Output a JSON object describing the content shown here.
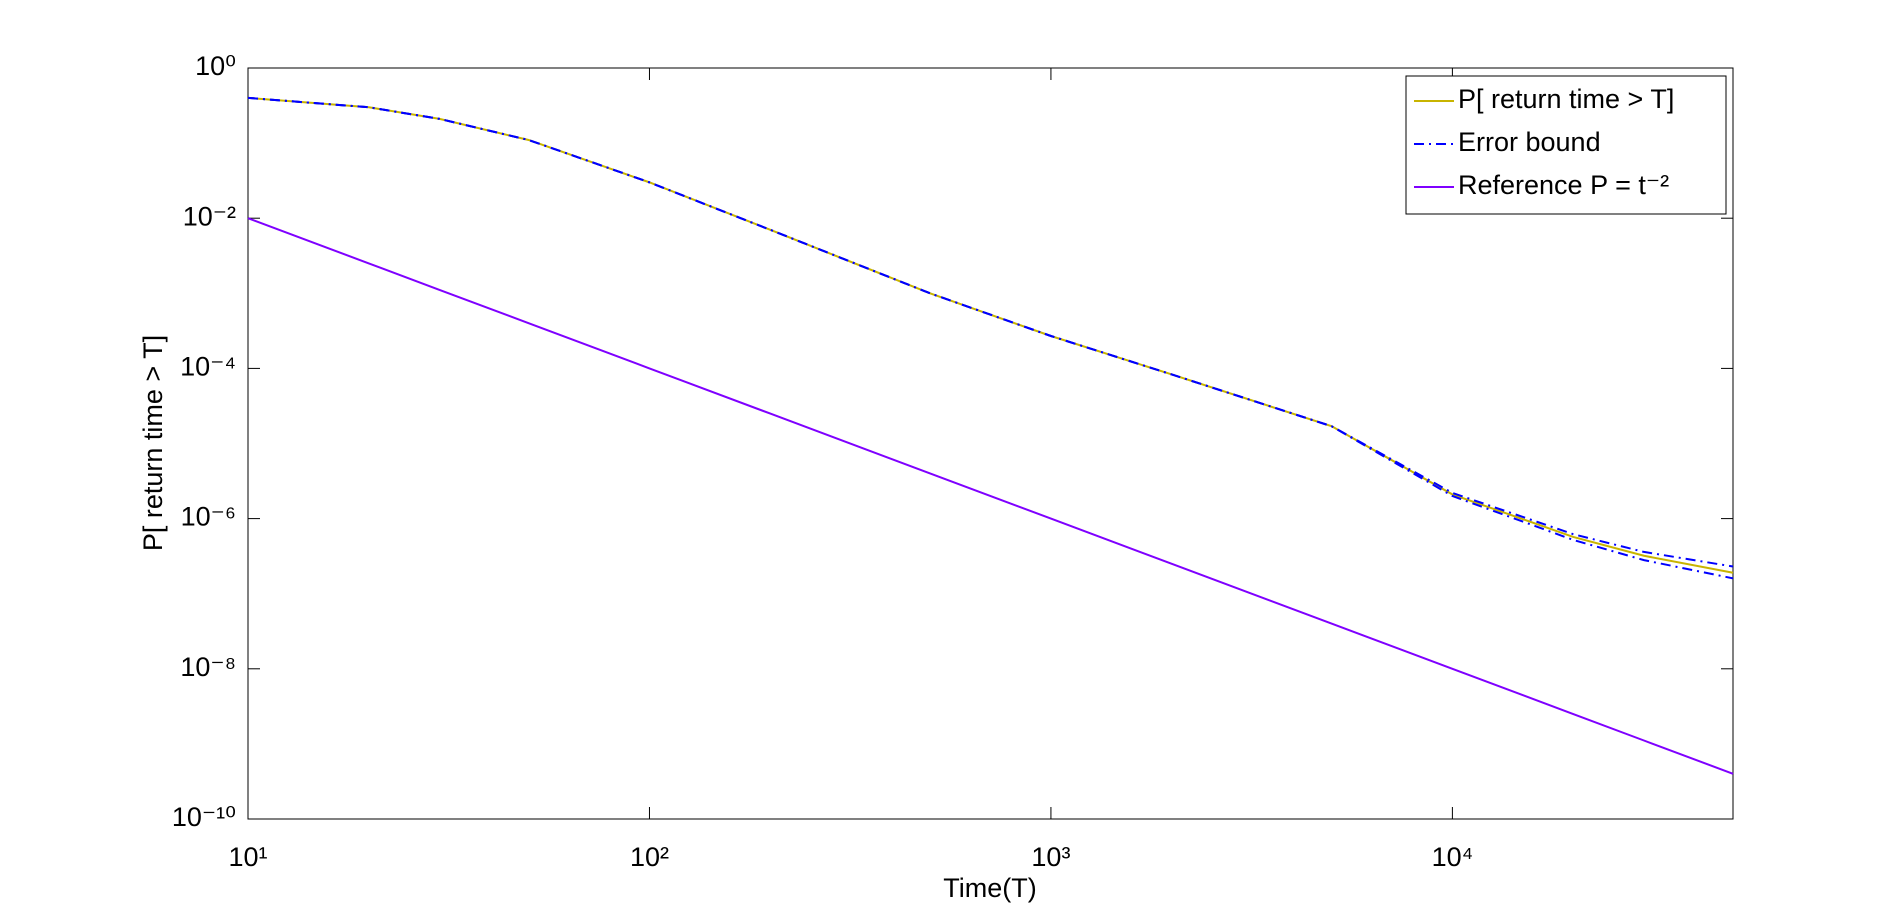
{
  "chart_data": {
    "type": "line",
    "x_label": "Time(T)",
    "y_label": "P[ return time > T]",
    "log_x": true,
    "log_y": true,
    "grid": false,
    "legend": "upper right",
    "x": [
      10,
      20,
      30,
      50,
      100,
      200,
      500,
      1000,
      2000,
      5000,
      10000,
      20000,
      30000,
      50000
    ],
    "series": [
      {
        "name": "P[ return time > T]",
        "color": "#c8b400",
        "style": "solid",
        "values": [
          0.4,
          0.3,
          0.21,
          0.11,
          0.03,
          0.007,
          0.001,
          0.00027,
          8.3e-05,
          1.7e-05,
          2.1e-06,
          5.7e-07,
          3.2e-07,
          1.9e-07
        ]
      },
      {
        "name": "Error bound",
        "color": "#0000ff",
        "style": "dashdot",
        "values": [
          0.4,
          0.3,
          0.21,
          0.11,
          0.03,
          0.007,
          0.001,
          0.00027,
          8.3e-05,
          1.7e-05,
          2.2e-06,
          6.2e-07,
          3.6e-07,
          2.3e-07
        ],
        "lower": [
          0.4,
          0.3,
          0.21,
          0.11,
          0.03,
          0.007,
          0.001,
          0.00027,
          8.3e-05,
          1.7e-05,
          2e-06,
          5.2e-07,
          2.8e-07,
          1.6e-07
        ]
      },
      {
        "name": "Reference P = t⁻²",
        "color": "#7f00ff",
        "style": "solid",
        "values": [
          0.01,
          0.0025,
          0.00111,
          0.0004,
          0.0001,
          2.5e-05,
          4e-06,
          1e-06,
          2.5e-07,
          4e-08,
          1e-08,
          2.5e-09,
          1.11e-09,
          4e-10
        ]
      }
    ],
    "xlim": [
      10,
      50000
    ],
    "ylim": [
      1e-10,
      1
    ],
    "xticks": [
      {
        "value": 10,
        "label": "10¹"
      },
      {
        "value": 100,
        "label": "10²"
      },
      {
        "value": 1000,
        "label": "10³"
      },
      {
        "value": 10000,
        "label": "10⁴"
      }
    ],
    "yticks": [
      {
        "value": 1e-10,
        "label": "10⁻¹⁰"
      },
      {
        "value": 1e-08,
        "label": "10⁻⁸"
      },
      {
        "value": 1e-06,
        "label": "10⁻⁶"
      },
      {
        "value": 0.0001,
        "label": "10⁻⁴"
      },
      {
        "value": 0.01,
        "label": "10⁻²"
      },
      {
        "value": 1,
        "label": "10⁰"
      }
    ]
  }
}
